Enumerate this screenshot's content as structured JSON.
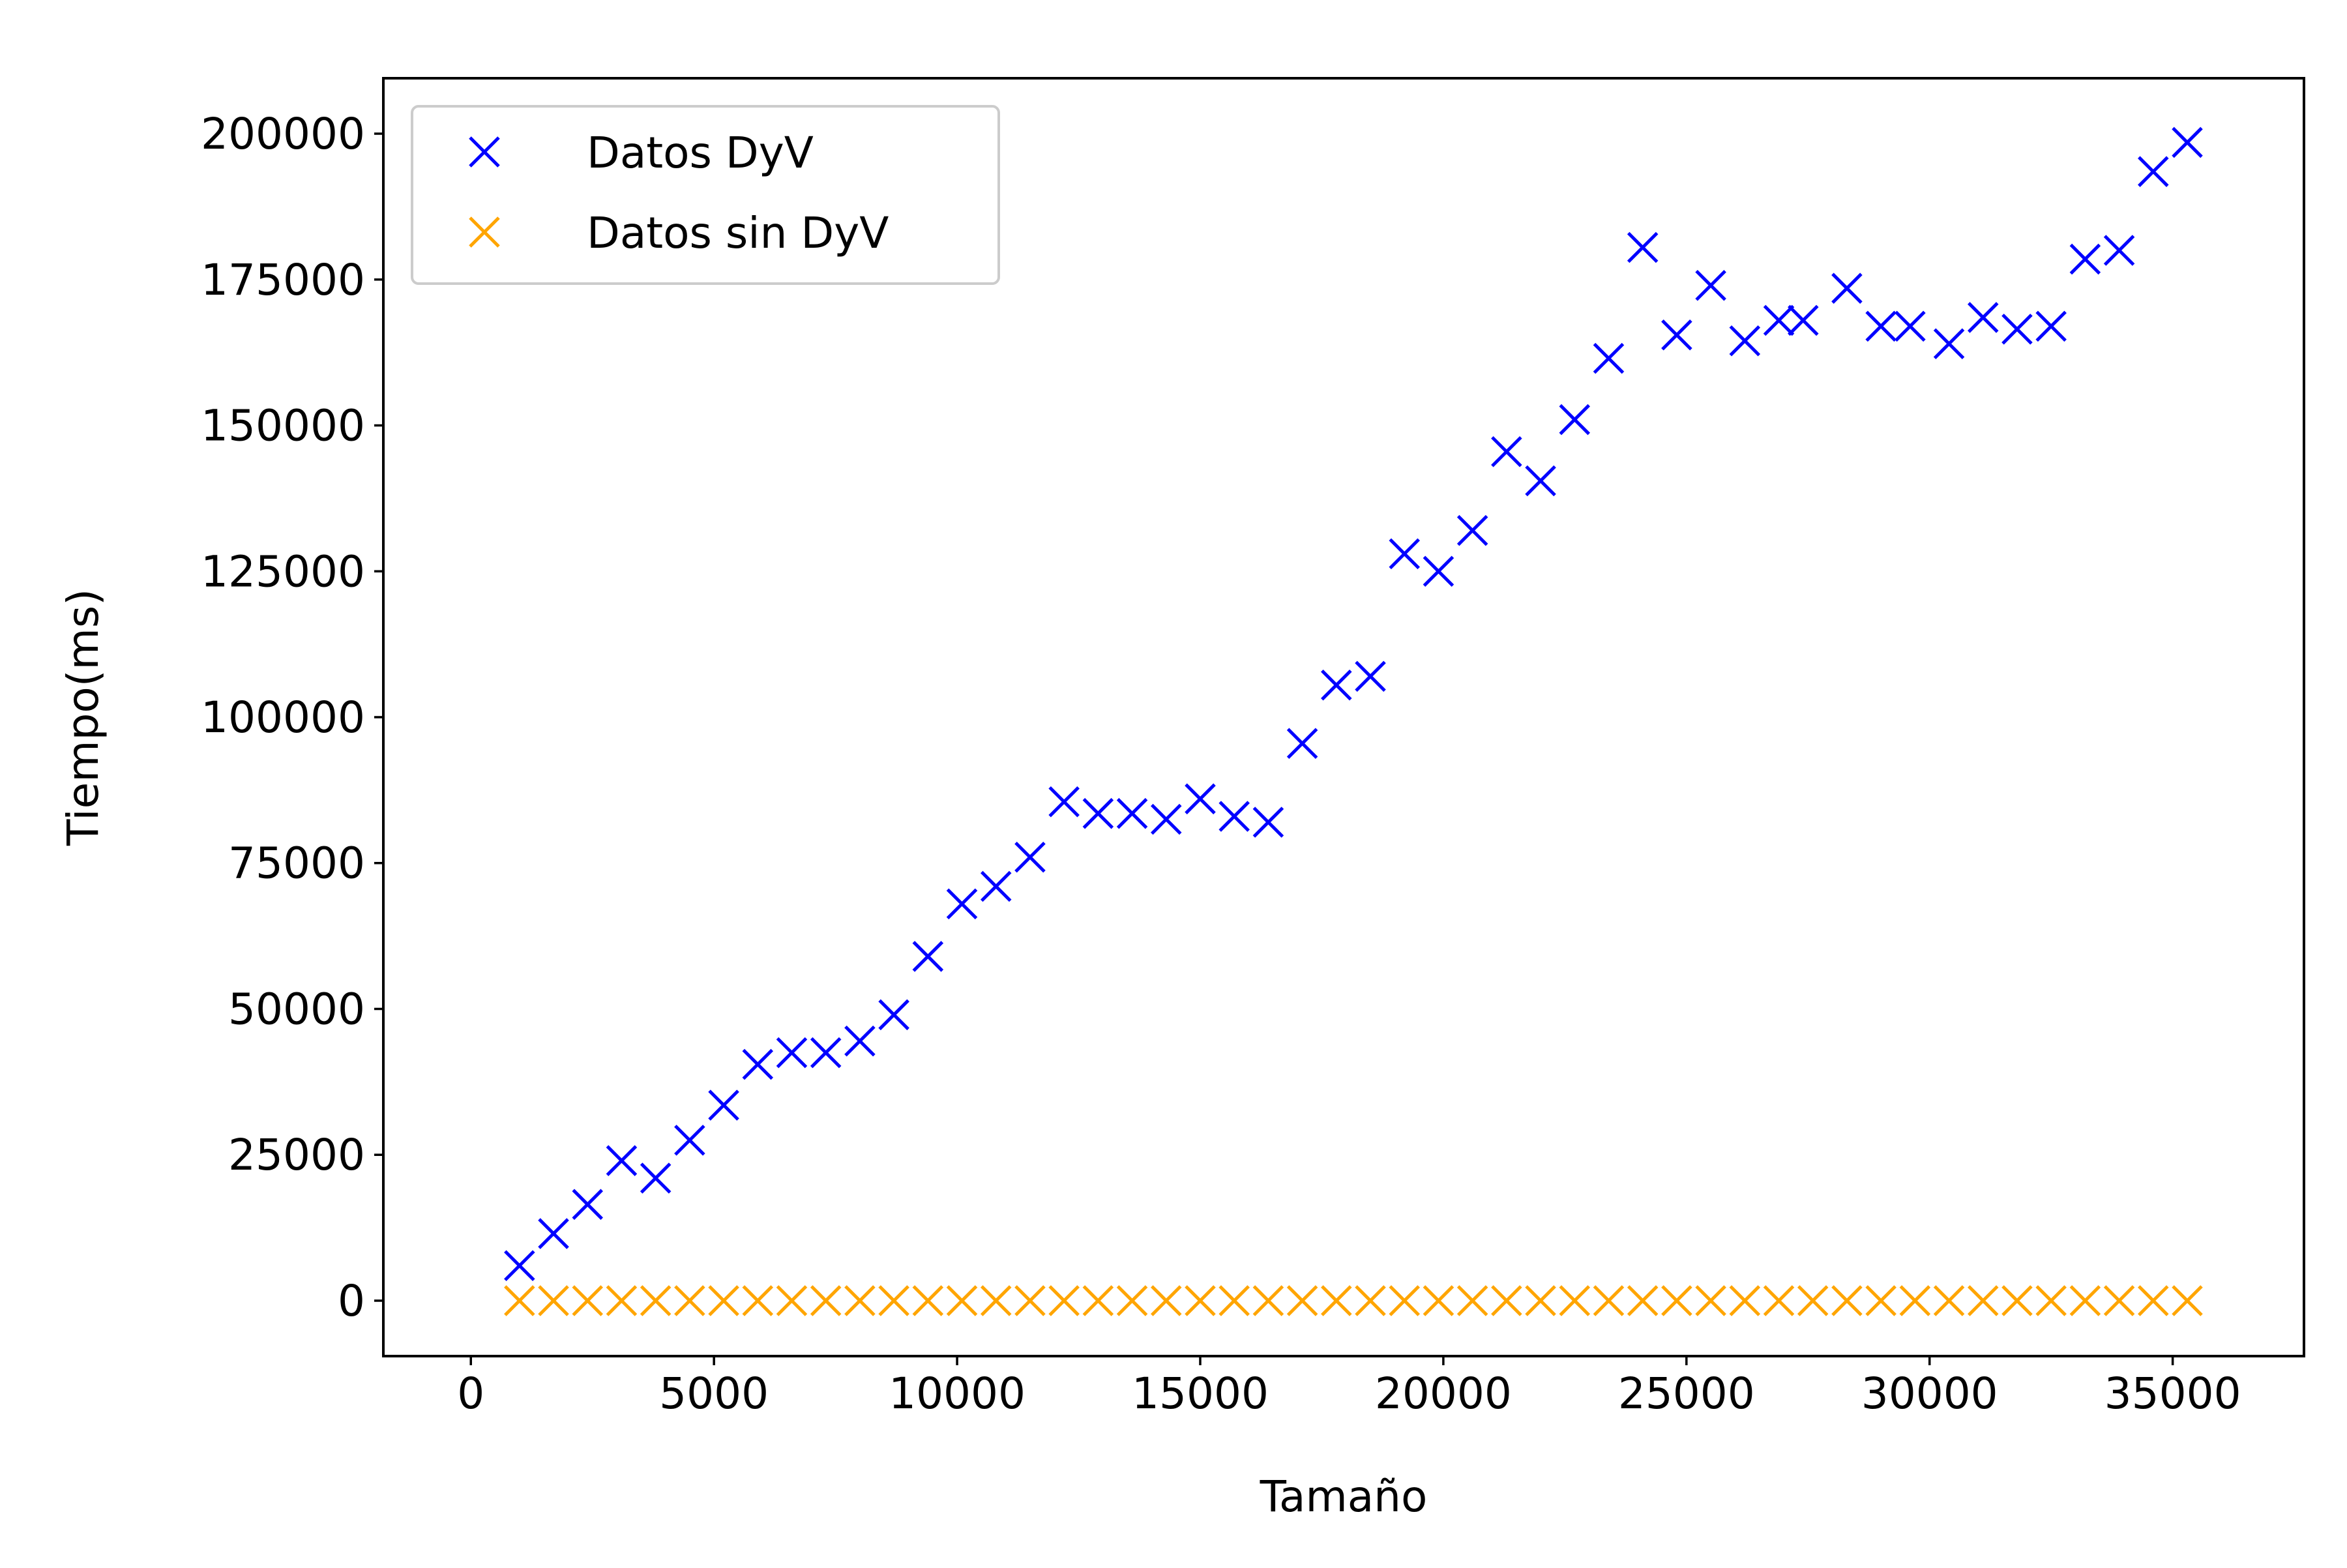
{
  "chart_data": {
    "type": "scatter",
    "xlabel": "Tamaño",
    "ylabel": "Tiempo(ms)",
    "xlim": [
      -1800,
      37700
    ],
    "ylim": [
      -9500,
      209500
    ],
    "xticks": [
      0,
      5000,
      10000,
      15000,
      20000,
      25000,
      30000,
      35000
    ],
    "yticks": [
      0,
      25000,
      50000,
      75000,
      100000,
      125000,
      150000,
      175000,
      200000
    ],
    "grid": false,
    "legend_position": "top-left",
    "series": [
      {
        "name": "Datos DyV",
        "color": "#0000ff",
        "marker": "x",
        "x": [
          1000,
          1700,
          2400,
          3100,
          3800,
          4500,
          5200,
          5900,
          6600,
          7300,
          8000,
          8700,
          9400,
          10100,
          10800,
          11500,
          12200,
          12900,
          13600,
          14300,
          15000,
          15700,
          16400,
          17100,
          17800,
          18500,
          19200,
          19900,
          20600,
          21300,
          22000,
          22700,
          23400,
          24100,
          24800,
          25500,
          26200,
          26900,
          27400,
          28300,
          29000,
          29600,
          30400,
          31100,
          31800,
          32500,
          33200,
          33900,
          34600,
          35300
        ],
        "y": [
          6000,
          11500,
          16500,
          24000,
          21000,
          27500,
          33500,
          40500,
          42500,
          42500,
          44500,
          49000,
          59000,
          68000,
          71000,
          76000,
          85500,
          83500,
          83500,
          82500,
          86000,
          83000,
          82000,
          95500,
          105500,
          107000,
          128000,
          125000,
          132000,
          145500,
          140500,
          151000,
          161500,
          180500,
          165500,
          174000,
          164500,
          168000,
          168000,
          173500,
          167000,
          167000,
          164000,
          168500,
          166500,
          167000,
          178500,
          180000,
          193500,
          198500
        ]
      },
      {
        "name": "Datos sin DyV",
        "color": "#ffa500",
        "marker": "x",
        "x": [
          1000,
          1700,
          2400,
          3100,
          3800,
          4500,
          5200,
          5900,
          6600,
          7300,
          8000,
          8700,
          9400,
          10100,
          10800,
          11500,
          12200,
          12900,
          13600,
          14300,
          15000,
          15700,
          16400,
          17100,
          17800,
          18500,
          19200,
          19900,
          20600,
          21300,
          22000,
          22700,
          23400,
          24100,
          24800,
          25500,
          26200,
          26900,
          27600,
          28300,
          29000,
          29700,
          30400,
          31100,
          31800,
          32500,
          33200,
          33900,
          34600,
          35300
        ],
        "y": [
          0,
          0,
          0,
          0,
          0,
          0,
          0,
          0,
          0,
          0,
          0,
          0,
          0,
          0,
          0,
          0,
          0,
          0,
          0,
          0,
          0,
          0,
          0,
          0,
          0,
          0,
          0,
          0,
          0,
          0,
          0,
          0,
          0,
          0,
          0,
          0,
          0,
          0,
          0,
          0,
          0,
          0,
          0,
          0,
          0,
          0,
          0,
          0,
          0,
          0
        ]
      }
    ]
  }
}
